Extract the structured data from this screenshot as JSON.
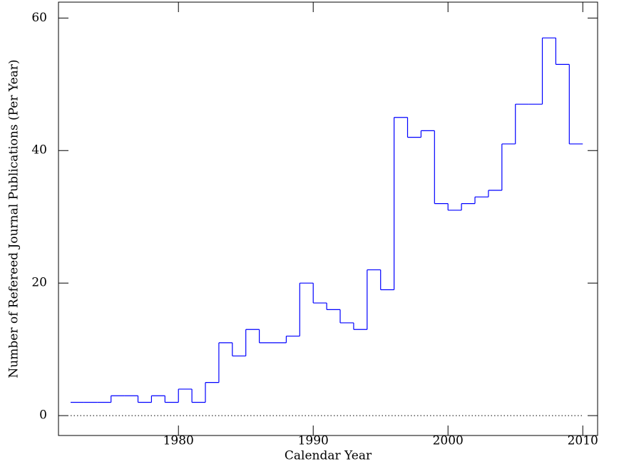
{
  "chart_data": {
    "type": "histogram",
    "xlabel": "Calendar Year",
    "ylabel": "Number of Refereed Journal Publications (Per Year)",
    "bins": [
      1972,
      1973,
      1974,
      1975,
      1976,
      1977,
      1978,
      1979,
      1980,
      1981,
      1982,
      1983,
      1984,
      1985,
      1986,
      1987,
      1988,
      1989,
      1990,
      1991,
      1992,
      1993,
      1994,
      1995,
      1996,
      1997,
      1998,
      1999,
      2000,
      2001,
      2002,
      2003,
      2004,
      2005,
      2006,
      2007,
      2008,
      2009,
      2010
    ],
    "values": [
      2,
      2,
      2,
      3,
      3,
      2,
      3,
      2,
      4,
      2,
      5,
      11,
      9,
      13,
      11,
      11,
      12,
      20,
      17,
      16,
      14,
      13,
      22,
      19,
      45,
      42,
      43,
      32,
      31,
      32,
      33,
      34,
      41,
      47,
      47,
      57,
      53,
      41
    ],
    "color": "#0000ff",
    "baseline": 0,
    "xlim": [
      1971.1,
      2011.1
    ],
    "xticks": [
      1980,
      1990,
      2000,
      2010
    ],
    "ylim": [
      -3,
      62.4
    ],
    "yticks": [
      0,
      20,
      40,
      60
    ]
  }
}
